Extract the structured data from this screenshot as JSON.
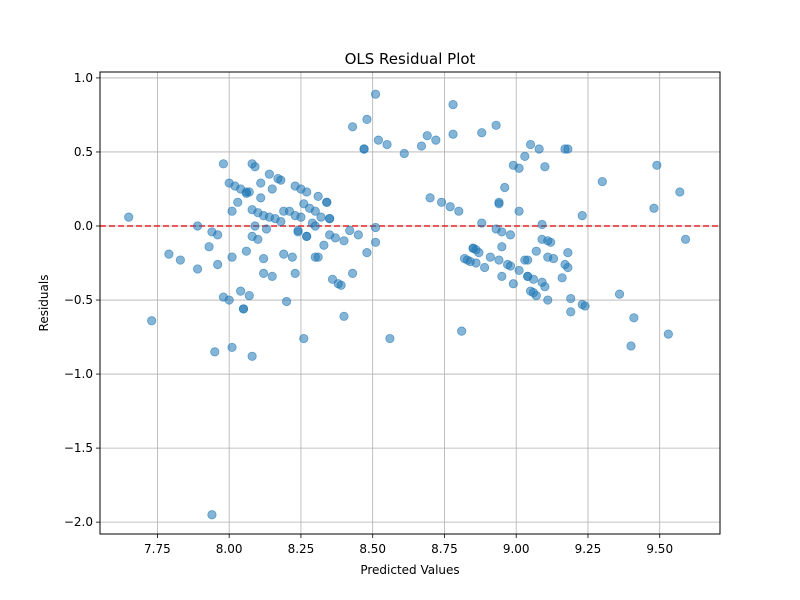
{
  "chart_data": {
    "type": "scatter",
    "title": "OLS Residual Plot",
    "xlabel": "Predicted Values",
    "ylabel": "Residuals",
    "xlim": [
      7.55,
      9.71
    ],
    "ylim": [
      -2.08,
      1.04
    ],
    "grid": true,
    "x_ticks": [
      "7.75",
      "8.00",
      "8.25",
      "8.50",
      "8.75",
      "9.00",
      "9.25",
      "9.50"
    ],
    "y_ticks": [
      "1.0",
      "0.5",
      "0.0",
      "−0.5",
      "−1.0",
      "−1.5",
      "−2.0"
    ],
    "x_tick_values": [
      7.75,
      8.0,
      8.25,
      8.5,
      8.75,
      9.0,
      9.25,
      9.5
    ],
    "y_tick_values": [
      1.0,
      0.5,
      0.0,
      -0.5,
      -1.0,
      -1.5,
      -2.0
    ],
    "reference_line": {
      "y": 0.0,
      "style": "dashed",
      "color": "#e32020"
    },
    "point_color": "#1f77b4",
    "points": [
      [
        7.65,
        0.06
      ],
      [
        7.73,
        -0.64
      ],
      [
        7.79,
        -0.19
      ],
      [
        7.83,
        -0.23
      ],
      [
        7.89,
        0.0
      ],
      [
        7.89,
        -0.29
      ],
      [
        7.93,
        -0.14
      ],
      [
        7.94,
        -0.04
      ],
      [
        7.95,
        -0.85
      ],
      [
        7.96,
        -0.26
      ],
      [
        7.96,
        -0.06
      ],
      [
        7.98,
        0.42
      ],
      [
        7.98,
        -0.48
      ],
      [
        8.0,
        -0.5
      ],
      [
        8.0,
        0.29
      ],
      [
        8.01,
        0.1
      ],
      [
        8.01,
        -0.21
      ],
      [
        8.02,
        0.27
      ],
      [
        8.01,
        -0.82
      ],
      [
        8.03,
        0.16
      ],
      [
        8.04,
        0.25
      ],
      [
        8.04,
        -0.44
      ],
      [
        8.05,
        -0.56
      ],
      [
        8.05,
        -0.56
      ],
      [
        8.06,
        0.23
      ],
      [
        8.06,
        0.22
      ],
      [
        8.06,
        -0.17
      ],
      [
        8.07,
        -0.47
      ],
      [
        8.07,
        0.23
      ],
      [
        8.08,
        0.42
      ],
      [
        8.08,
        -0.07
      ],
      [
        8.08,
        0.11
      ],
      [
        8.08,
        -0.88
      ],
      [
        8.09,
        0.0
      ],
      [
        8.09,
        0.4
      ],
      [
        8.1,
        0.09
      ],
      [
        8.1,
        -0.09
      ],
      [
        8.11,
        0.29
      ],
      [
        8.11,
        0.19
      ],
      [
        8.12,
        0.07
      ],
      [
        8.12,
        -0.22
      ],
      [
        8.12,
        -0.32
      ],
      [
        8.13,
        -0.02
      ],
      [
        8.14,
        0.06
      ],
      [
        8.14,
        0.35
      ],
      [
        8.15,
        0.25
      ],
      [
        8.15,
        -0.34
      ],
      [
        8.16,
        0.05
      ],
      [
        8.17,
        0.32
      ],
      [
        8.18,
        0.31
      ],
      [
        8.18,
        0.03
      ],
      [
        8.19,
        0.1
      ],
      [
        8.19,
        -0.19
      ],
      [
        8.2,
        -0.51
      ],
      [
        8.21,
        0.1
      ],
      [
        8.22,
        -0.21
      ],
      [
        8.23,
        0.27
      ],
      [
        8.23,
        -0.32
      ],
      [
        8.23,
        0.07
      ],
      [
        8.24,
        -0.03
      ],
      [
        8.24,
        -0.04
      ],
      [
        8.25,
        0.06
      ],
      [
        8.25,
        0.25
      ],
      [
        8.26,
        0.15
      ],
      [
        8.26,
        -0.76
      ],
      [
        8.27,
        0.23
      ],
      [
        8.27,
        -0.07
      ],
      [
        8.27,
        -0.07
      ],
      [
        8.28,
        0.12
      ],
      [
        8.29,
        0.02
      ],
      [
        8.3,
        0.1
      ],
      [
        8.3,
        0.0
      ],
      [
        8.31,
        0.2
      ],
      [
        8.3,
        -0.21
      ],
      [
        8.31,
        -0.21
      ],
      [
        8.32,
        0.06
      ],
      [
        8.33,
        -0.13
      ],
      [
        8.34,
        0.16
      ],
      [
        8.34,
        0.16
      ],
      [
        8.35,
        0.05
      ],
      [
        8.35,
        0.05
      ],
      [
        8.35,
        -0.06
      ],
      [
        8.36,
        -0.36
      ],
      [
        8.37,
        -0.08
      ],
      [
        8.38,
        -0.39
      ],
      [
        8.39,
        -0.4
      ],
      [
        8.4,
        -0.1
      ],
      [
        8.4,
        -0.61
      ],
      [
        8.42,
        -0.03
      ],
      [
        8.43,
        -0.32
      ],
      [
        8.43,
        0.67
      ],
      [
        8.45,
        -0.06
      ],
      [
        8.47,
        0.52
      ],
      [
        8.48,
        0.72
      ],
      [
        8.47,
        0.52
      ],
      [
        8.48,
        -0.18
      ],
      [
        8.51,
        0.89
      ],
      [
        8.51,
        -0.11
      ],
      [
        8.52,
        0.58
      ],
      [
        8.51,
        -0.01
      ],
      [
        8.55,
        0.55
      ],
      [
        8.56,
        -0.76
      ],
      [
        8.61,
        0.49
      ],
      [
        8.67,
        0.54
      ],
      [
        8.69,
        0.61
      ],
      [
        8.7,
        0.19
      ],
      [
        8.72,
        0.58
      ],
      [
        8.74,
        0.16
      ],
      [
        8.77,
        0.13
      ],
      [
        8.78,
        0.82
      ],
      [
        8.78,
        0.62
      ],
      [
        8.8,
        0.1
      ],
      [
        8.81,
        -0.71
      ],
      [
        8.82,
        -0.22
      ],
      [
        8.83,
        -0.23
      ],
      [
        8.84,
        -0.24
      ],
      [
        8.85,
        -0.15
      ],
      [
        8.85,
        -0.15
      ],
      [
        8.86,
        -0.16
      ],
      [
        8.86,
        -0.25
      ],
      [
        8.87,
        -0.18
      ],
      [
        8.88,
        0.63
      ],
      [
        8.88,
        0.02
      ],
      [
        8.89,
        -0.28
      ],
      [
        8.91,
        -0.21
      ],
      [
        8.93,
        -0.02
      ],
      [
        8.93,
        0.68
      ],
      [
        8.94,
        -0.23
      ],
      [
        8.94,
        0.16
      ],
      [
        8.94,
        0.15
      ],
      [
        8.95,
        -0.04
      ],
      [
        8.95,
        -0.14
      ],
      [
        8.95,
        -0.34
      ],
      [
        8.96,
        0.26
      ],
      [
        8.97,
        -0.26
      ],
      [
        8.98,
        -0.06
      ],
      [
        8.98,
        -0.27
      ],
      [
        8.99,
        0.41
      ],
      [
        8.99,
        -0.39
      ],
      [
        9.01,
        0.1
      ],
      [
        9.01,
        -0.3
      ],
      [
        9.01,
        0.39
      ],
      [
        9.03,
        0.47
      ],
      [
        9.03,
        -0.23
      ],
      [
        9.04,
        -0.34
      ],
      [
        9.04,
        -0.34
      ],
      [
        9.04,
        -0.23
      ],
      [
        9.05,
        -0.44
      ],
      [
        9.05,
        0.55
      ],
      [
        9.06,
        -0.45
      ],
      [
        9.06,
        -0.36
      ],
      [
        9.07,
        -0.17
      ],
      [
        9.07,
        -0.47
      ],
      [
        9.08,
        0.52
      ],
      [
        9.09,
        -0.38
      ],
      [
        9.09,
        0.01
      ],
      [
        9.09,
        -0.09
      ],
      [
        9.1,
        0.4
      ],
      [
        9.1,
        -0.41
      ],
      [
        9.11,
        -0.1
      ],
      [
        9.11,
        -0.5
      ],
      [
        9.11,
        -0.21
      ],
      [
        9.12,
        -0.11
      ],
      [
        9.13,
        -0.22
      ],
      [
        9.16,
        -0.35
      ],
      [
        9.17,
        -0.26
      ],
      [
        9.17,
        0.52
      ],
      [
        9.18,
        -0.18
      ],
      [
        9.18,
        0.52
      ],
      [
        9.18,
        -0.28
      ],
      [
        9.19,
        -0.58
      ],
      [
        9.19,
        -0.49
      ],
      [
        9.23,
        0.07
      ],
      [
        9.23,
        -0.53
      ],
      [
        9.24,
        -0.54
      ],
      [
        9.3,
        0.3
      ],
      [
        9.36,
        -0.46
      ],
      [
        9.4,
        -0.81
      ],
      [
        9.41,
        -0.62
      ],
      [
        9.48,
        0.12
      ],
      [
        9.49,
        0.41
      ],
      [
        9.53,
        -0.73
      ],
      [
        9.57,
        0.23
      ],
      [
        9.59,
        -0.09
      ],
      [
        7.94,
        -1.95
      ]
    ]
  }
}
